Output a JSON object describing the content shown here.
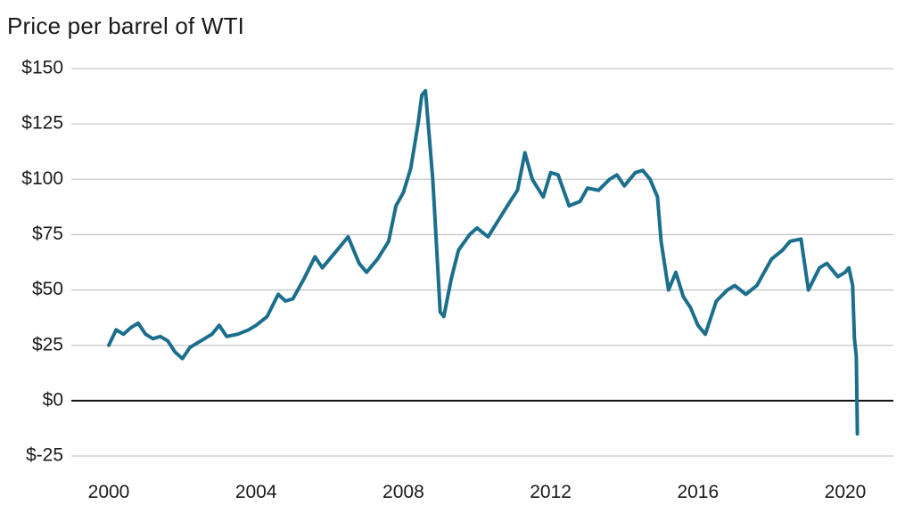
{
  "chart_data": {
    "type": "line",
    "title": "",
    "subtitle": "Price per barrel of WTI",
    "xlabel": "",
    "ylabel": "",
    "xlim": [
      2000,
      2020.6
    ],
    "ylim": [
      -25,
      150
    ],
    "y_ticks": [
      150,
      125,
      100,
      75,
      50,
      25,
      0,
      -25
    ],
    "y_tick_labels": [
      "$150",
      "$125",
      "$100",
      "$75",
      "$50",
      "$25",
      "$0",
      "$-25"
    ],
    "x_ticks": [
      2000,
      2004,
      2008,
      2012,
      2016,
      2020
    ],
    "x_tick_labels": [
      "2000",
      "2004",
      "2008",
      "2012",
      "2016",
      "2020"
    ],
    "grid": true,
    "zero_line": true,
    "legend": "none",
    "colors": {
      "line": "#1b6f8c",
      "grid": "#c8c8c8",
      "zero_line": "#111111"
    },
    "series": [
      {
        "x": [
          2000.0,
          2000.2,
          2000.4,
          2000.6,
          2000.8,
          2001.0,
          2001.2,
          2001.4,
          2001.6,
          2001.8,
          2002.0,
          2002.2,
          2002.5,
          2002.8,
          2003.0,
          2003.2,
          2003.5,
          2003.8,
          2004.0,
          2004.3,
          2004.6,
          2004.8,
          2005.0,
          2005.3,
          2005.6,
          2005.8,
          2006.0,
          2006.3,
          2006.5,
          2006.8,
          2007.0,
          2007.3,
          2007.6,
          2007.8,
          2008.0,
          2008.2,
          2008.4,
          2008.5,
          2008.6,
          2008.7,
          2008.8,
          2008.9,
          2009.0,
          2009.1,
          2009.3,
          2009.5,
          2009.8,
          2010.0,
          2010.3,
          2010.6,
          2010.9,
          2011.1,
          2011.3,
          2011.5,
          2011.8,
          2012.0,
          2012.2,
          2012.5,
          2012.8,
          2013.0,
          2013.3,
          2013.6,
          2013.8,
          2014.0,
          2014.3,
          2014.5,
          2014.7,
          2014.9,
          2015.0,
          2015.2,
          2015.4,
          2015.6,
          2015.8,
          2016.0,
          2016.2,
          2016.5,
          2016.8,
          2017.0,
          2017.3,
          2017.6,
          2017.8,
          2018.0,
          2018.3,
          2018.5,
          2018.8,
          2019.0,
          2019.3,
          2019.5,
          2019.8,
          2020.0,
          2020.1,
          2020.2,
          2020.25,
          2020.3,
          2020.31,
          2020.33
        ],
        "values": [
          25,
          32,
          30,
          33,
          35,
          30,
          28,
          29,
          27,
          22,
          19,
          24,
          27,
          30,
          34,
          29,
          30,
          32,
          34,
          38,
          48,
          45,
          46,
          55,
          65,
          60,
          64,
          70,
          74,
          62,
          58,
          64,
          72,
          88,
          94,
          105,
          125,
          138,
          140,
          120,
          100,
          70,
          40,
          38,
          55,
          68,
          75,
          78,
          74,
          82,
          90,
          95,
          112,
          100,
          92,
          103,
          102,
          88,
          90,
          96,
          95,
          100,
          102,
          97,
          103,
          104,
          100,
          92,
          72,
          50,
          58,
          47,
          42,
          34,
          30,
          45,
          50,
          52,
          48,
          52,
          58,
          64,
          68,
          72,
          73,
          50,
          60,
          62,
          56,
          58,
          60,
          52,
          28,
          20,
          10,
          -15
        ]
      }
    ]
  }
}
